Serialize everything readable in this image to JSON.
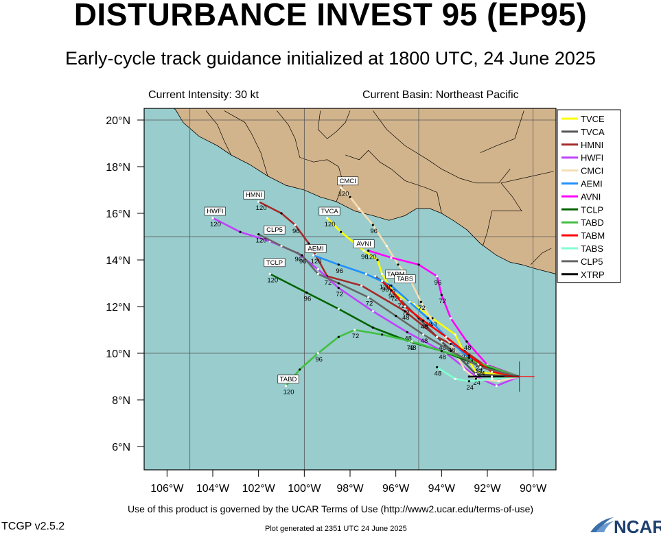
{
  "header": {
    "title": "DISTURBANCE INVEST 95 (EP95)",
    "subtitle": "Early-cycle track guidance initialized at 1800 UTC, 24 June 2025",
    "intensity": "Current Intensity: 30 kt",
    "basin": "Current Basin: Northeast Pacific"
  },
  "footer": {
    "terms": "Use of this product is governed by the UCAR Terms of Use (http://www2.ucar.edu/terms-of-use)",
    "version": "TCGP v2.5.2",
    "generated": "Plot generated at 2351 UTC   24 June 2025",
    "logo_text": "NCAR"
  },
  "colors": {
    "ocean": "#99cccc",
    "land": "#d2b48c",
    "grid": "#555555",
    "storm_marker": "#ff0000"
  },
  "map": {
    "lon_range": [
      -107,
      -89
    ],
    "lat_range": [
      5,
      20.5
    ],
    "x_ticks": [
      -106,
      -104,
      -102,
      -100,
      -98,
      -96,
      -94,
      -92,
      -90
    ],
    "x_tick_labels": [
      "106°W",
      "104°W",
      "102°W",
      "100°W",
      "98°W",
      "96°W",
      "94°W",
      "92°W",
      "90°W"
    ],
    "y_ticks": [
      6,
      8,
      10,
      12,
      14,
      16,
      18,
      20
    ],
    "y_tick_labels": [
      "6°N",
      "8°N",
      "10°N",
      "12°N",
      "14°N",
      "16°N",
      "18°N",
      "20°N"
    ],
    "storm_position": {
      "lon": -90.6,
      "lat": 9.0
    }
  },
  "chart_data": {
    "type": "line",
    "xlabel": "",
    "ylabel": "",
    "xlim": [
      -107,
      -89
    ],
    "ylim": [
      5,
      20.5
    ],
    "legend_position": "right",
    "series": [
      {
        "name": "TVCE",
        "color": "#ffff00",
        "points": [
          [
            -90.6,
            9.0
          ],
          [
            -92.5,
            9.2
          ],
          [
            -93.0,
            10.0
          ],
          [
            -93.4,
            10.8
          ],
          [
            -94.4,
            11.5
          ],
          [
            -95.2,
            12.1
          ],
          [
            -96.1,
            12.6
          ],
          [
            -96.6,
            13.4
          ],
          [
            -96.8,
            14.0
          ],
          [
            -97.4,
            14.4
          ],
          [
            -98.4,
            15.2
          ],
          [
            -99.0,
            15.8
          ]
        ],
        "labels": [
          {
            "i": 2,
            "t": "24"
          },
          {
            "i": 4,
            "t": "48"
          },
          {
            "i": 6,
            "t": "72"
          },
          {
            "i": 9,
            "t": "96"
          },
          {
            "i": 11,
            "t": "120"
          }
        ]
      },
      {
        "name": "TVCA",
        "color": "#555555",
        "points": [
          [
            -90.6,
            9.0
          ],
          [
            -92.5,
            9.1
          ],
          [
            -93.2,
            9.8
          ],
          [
            -94.0,
            10.5
          ],
          [
            -95.0,
            11.5
          ],
          [
            -95.8,
            12.3
          ],
          [
            -96.5,
            13.0
          ],
          [
            -96.9,
            13.3
          ]
        ],
        "labels": [
          {
            "i": 3,
            "t": "48"
          },
          {
            "i": 5,
            "t": "72"
          },
          {
            "i": 6,
            "t": "96"
          }
        ]
      },
      {
        "name": "HMNI",
        "color": "#a52a2a",
        "points": [
          [
            -90.6,
            9.0
          ],
          [
            -92.0,
            9.4
          ],
          [
            -93.0,
            10.1
          ],
          [
            -94.2,
            10.7
          ],
          [
            -95.6,
            11.8
          ],
          [
            -97.5,
            12.9
          ],
          [
            -99.0,
            13.3
          ],
          [
            -99.5,
            14.2
          ],
          [
            -99.8,
            14.7
          ],
          [
            -100.4,
            15.5
          ],
          [
            -101.0,
            16.0
          ],
          [
            -102.0,
            16.5
          ]
        ],
        "labels": [
          {
            "i": 2,
            "t": "24"
          },
          {
            "i": 4,
            "t": "48"
          },
          {
            "i": 6,
            "t": "72"
          },
          {
            "i": 9,
            "t": "96"
          },
          {
            "i": 11,
            "t": "120"
          }
        ]
      },
      {
        "name": "HWFI",
        "color": "#c040ff",
        "points": [
          [
            -90.6,
            9.0
          ],
          [
            -91.6,
            8.6
          ],
          [
            -92.5,
            9.0
          ],
          [
            -93.8,
            10.0
          ],
          [
            -95.5,
            10.9
          ],
          [
            -97.0,
            11.8
          ],
          [
            -98.5,
            12.8
          ],
          [
            -99.4,
            13.6
          ],
          [
            -100.3,
            14.3
          ],
          [
            -101.5,
            14.8
          ],
          [
            -102.8,
            15.2
          ],
          [
            -104.0,
            15.8
          ]
        ],
        "labels": [
          {
            "i": 2,
            "t": "24"
          },
          {
            "i": 4,
            "t": "48"
          },
          {
            "i": 6,
            "t": "72"
          },
          {
            "i": 8,
            "t": "96"
          },
          {
            "i": 11,
            "t": "120"
          }
        ]
      },
      {
        "name": "CMCI",
        "color": "#f5deb3",
        "points": [
          [
            -90.6,
            9.0
          ],
          [
            -91.5,
            8.8
          ],
          [
            -92.5,
            8.9
          ],
          [
            -93.0,
            9.3
          ],
          [
            -93.6,
            10.4
          ],
          [
            -94.3,
            11.2
          ],
          [
            -94.9,
            12.2
          ],
          [
            -95.4,
            13.2
          ],
          [
            -95.9,
            13.8
          ],
          [
            -96.4,
            14.6
          ],
          [
            -97.0,
            15.5
          ],
          [
            -97.6,
            16.2
          ],
          [
            -98.0,
            16.7
          ],
          [
            -98.4,
            17.1
          ]
        ],
        "labels": [
          {
            "i": 4,
            "t": "48"
          },
          {
            "i": 6,
            "t": "72"
          },
          {
            "i": 10,
            "t": "96"
          },
          {
            "i": 13,
            "t": "120"
          }
        ]
      },
      {
        "name": "AEMI",
        "color": "#1e90ff",
        "points": [
          [
            -90.6,
            9.0
          ],
          [
            -91.8,
            9.3
          ],
          [
            -92.8,
            9.8
          ],
          [
            -93.6,
            10.5
          ],
          [
            -94.6,
            11.5
          ],
          [
            -95.4,
            12.2
          ],
          [
            -96.2,
            12.9
          ],
          [
            -97.3,
            13.4
          ],
          [
            -98.5,
            13.8
          ],
          [
            -99.6,
            14.2
          ]
        ],
        "labels": [
          {
            "i": 4,
            "t": "48"
          },
          {
            "i": 6,
            "t": "72"
          },
          {
            "i": 8,
            "t": "96"
          },
          {
            "i": 9,
            "t": "120"
          }
        ]
      },
      {
        "name": "AVNI",
        "color": "#ff00ff",
        "points": [
          [
            -90.6,
            9.0
          ],
          [
            -92.0,
            9.5
          ],
          [
            -92.9,
            10.5
          ],
          [
            -93.6,
            11.5
          ],
          [
            -94.0,
            12.5
          ],
          [
            -94.2,
            13.3
          ],
          [
            -95.0,
            13.8
          ],
          [
            -96.2,
            14.1
          ],
          [
            -97.2,
            14.4
          ]
        ],
        "labels": [
          {
            "i": 2,
            "t": "48"
          },
          {
            "i": 4,
            "t": "72"
          },
          {
            "i": 5,
            "t": "96"
          },
          {
            "i": 8,
            "t": "120"
          }
        ]
      },
      {
        "name": "TCLP",
        "color": "#006400",
        "points": [
          [
            -90.6,
            9.0
          ],
          [
            -92.4,
            9.5
          ],
          [
            -94.0,
            10.1
          ],
          [
            -95.4,
            10.5
          ],
          [
            -97.0,
            11.1
          ],
          [
            -98.5,
            11.9
          ],
          [
            -99.9,
            12.6
          ],
          [
            -101.5,
            13.4
          ]
        ],
        "labels": [
          {
            "i": 1,
            "t": "24"
          },
          {
            "i": 2,
            "t": "48"
          },
          {
            "i": 3,
            "t": "72"
          },
          {
            "i": 6,
            "t": "96"
          },
          {
            "i": 7,
            "t": "120"
          }
        ]
      },
      {
        "name": "TABD",
        "color": "#40c040",
        "points": [
          [
            -90.6,
            9.0
          ],
          [
            -92.4,
            9.6
          ],
          [
            -94.0,
            10.1
          ],
          [
            -95.3,
            10.5
          ],
          [
            -96.6,
            10.8
          ],
          [
            -97.8,
            11.0
          ],
          [
            -98.5,
            10.7
          ],
          [
            -99.4,
            10.0
          ],
          [
            -100.2,
            9.3
          ],
          [
            -100.8,
            8.6
          ]
        ],
        "labels": [
          {
            "i": 1,
            "t": "24"
          },
          {
            "i": 3,
            "t": "48"
          },
          {
            "i": 5,
            "t": "72"
          },
          {
            "i": 7,
            "t": "96"
          },
          {
            "i": 9,
            "t": "120"
          }
        ]
      },
      {
        "name": "TABM",
        "color": "#ff0000",
        "points": [
          [
            -90.6,
            9.0
          ],
          [
            -91.8,
            9.2
          ],
          [
            -92.8,
            9.9
          ],
          [
            -93.8,
            10.7
          ],
          [
            -94.8,
            11.4
          ],
          [
            -95.6,
            12.0
          ],
          [
            -96.2,
            12.7
          ],
          [
            -96.6,
            13.1
          ]
        ],
        "labels": [
          {
            "i": 2,
            "t": "24"
          },
          {
            "i": 4,
            "t": "48"
          },
          {
            "i": 5,
            "t": "72"
          },
          {
            "i": 6,
            "t": "96"
          },
          {
            "i": 7,
            "t": "120"
          }
        ]
      },
      {
        "name": "TABS",
        "color": "#80ffd0",
        "points": [
          [
            -90.6,
            9.0
          ],
          [
            -91.8,
            8.9
          ],
          [
            -92.8,
            8.8
          ],
          [
            -93.4,
            8.9
          ],
          [
            -94.2,
            9.4
          ]
        ],
        "labels": [
          {
            "i": 2,
            "t": "24"
          },
          {
            "i": 4,
            "t": "48"
          }
        ]
      },
      {
        "name": "CLP5",
        "color": "#666666",
        "points": [
          [
            -90.6,
            9.0
          ],
          [
            -92.3,
            9.4
          ],
          [
            -93.6,
            10.1
          ],
          [
            -94.8,
            10.8
          ],
          [
            -96.0,
            11.6
          ],
          [
            -97.2,
            12.4
          ],
          [
            -98.5,
            13.0
          ],
          [
            -99.4,
            13.4
          ],
          [
            -100.1,
            14.2
          ],
          [
            -101.0,
            14.6
          ],
          [
            -102.0,
            15.1
          ]
        ],
        "labels": [
          {
            "i": 1,
            "t": "24"
          },
          {
            "i": 3,
            "t": "48"
          },
          {
            "i": 5,
            "t": "72"
          },
          {
            "i": 8,
            "t": "96"
          },
          {
            "i": 10,
            "t": "120"
          }
        ]
      },
      {
        "name": "XTRP",
        "color": "#000000",
        "points": [
          [
            -90.6,
            9.0
          ],
          [
            -91.8,
            9.0
          ],
          [
            -92.8,
            9.0
          ]
        ],
        "labels": []
      }
    ]
  },
  "model_labels": [
    {
      "text": "HMNI",
      "lon": -102.2,
      "lat": 16.7
    },
    {
      "text": "HWFI",
      "lon": -103.9,
      "lat": 16.0
    },
    {
      "text": "CLP5",
      "lon": -101.3,
      "lat": 15.2
    },
    {
      "text": "TCLP",
      "lon": -101.3,
      "lat": 13.8
    },
    {
      "text": "TABD",
      "lon": -100.7,
      "lat": 8.8
    },
    {
      "text": "CMCI",
      "lon": -98.1,
      "lat": 17.3
    },
    {
      "text": "TVCA",
      "lon": -98.9,
      "lat": 16.0
    },
    {
      "text": "AEMI",
      "lon": -99.5,
      "lat": 14.4
    },
    {
      "text": "AVNI",
      "lon": -97.4,
      "lat": 14.6
    },
    {
      "text": "TABM",
      "lon": -96.0,
      "lat": 13.3
    },
    {
      "text": "TABS",
      "lon": -95.6,
      "lat": 13.1
    }
  ]
}
